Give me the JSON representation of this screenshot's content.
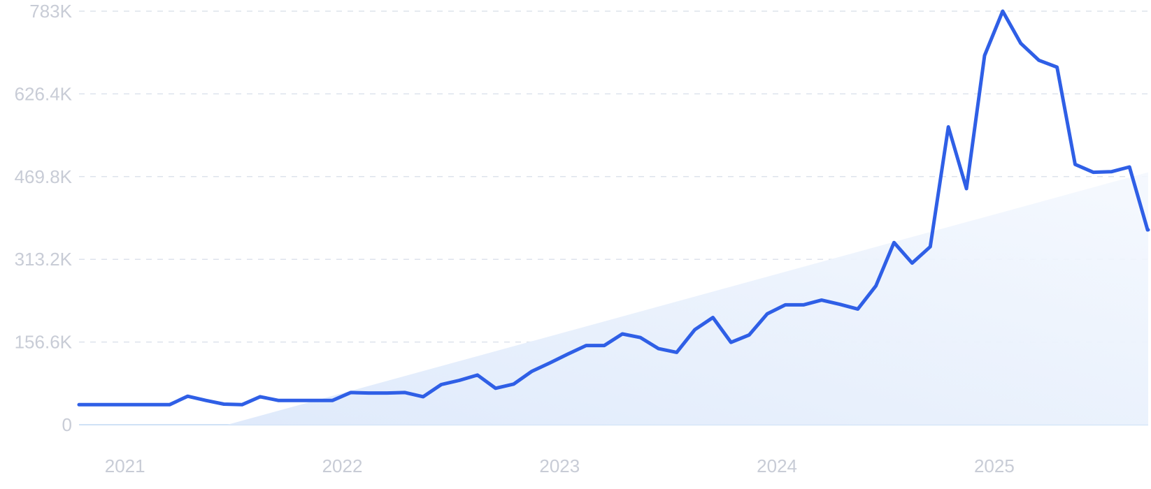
{
  "chart_data": {
    "type": "line",
    "title": "",
    "xlabel": "",
    "ylabel": "",
    "ylim": [
      0,
      783000
    ],
    "y_ticks": [
      {
        "value": 0,
        "label": "0"
      },
      {
        "value": 156600,
        "label": "156.6K"
      },
      {
        "value": 313200,
        "label": "313.2K"
      },
      {
        "value": 469800,
        "label": "469.8K"
      },
      {
        "value": 626400,
        "label": "626.4K"
      },
      {
        "value": 783000,
        "label": "783K"
      }
    ],
    "x_ticks": [
      {
        "value": "2021-04",
        "label": "2021"
      },
      {
        "value": "2022-04",
        "label": "2022"
      },
      {
        "value": "2023-04",
        "label": "2023"
      },
      {
        "value": "2024-04",
        "label": "2024"
      },
      {
        "value": "2025-04",
        "label": "2025"
      }
    ],
    "grid": true,
    "trend_area": true,
    "colors": {
      "line": "#2f5fe6",
      "trend_fill": "#e6f0fb",
      "grid": "#dde3ec",
      "tick": "#c8ccd6"
    },
    "series": [
      {
        "x": [
          "2021-01",
          "2021-02",
          "2021-03",
          "2021-04",
          "2021-05",
          "2021-06",
          "2021-07",
          "2021-08",
          "2021-09",
          "2021-10",
          "2021-11",
          "2021-12",
          "2022-01",
          "2022-02",
          "2022-03",
          "2022-04",
          "2022-05",
          "2022-06",
          "2022-07",
          "2022-08",
          "2022-09",
          "2022-10",
          "2022-11",
          "2022-12",
          "2023-01",
          "2023-02",
          "2023-03",
          "2023-04",
          "2023-05",
          "2023-06",
          "2023-07",
          "2023-08",
          "2023-09",
          "2023-10",
          "2023-11",
          "2023-12",
          "2024-01",
          "2024-02",
          "2024-03",
          "2024-04",
          "2024-05",
          "2024-06",
          "2024-07",
          "2024-08",
          "2024-09",
          "2024-10",
          "2024-11",
          "2024-12",
          "2025-01",
          "2025-02",
          "2025-03",
          "2025-04",
          "2025-05",
          "2025-06",
          "2025-07",
          "2025-08",
          "2025-09",
          "2025-10",
          "2025-11",
          "2025-12",
          "2026-01",
          "2026-02"
        ],
        "values": [
          38000,
          38000,
          38000,
          38000,
          38000,
          38000,
          54000,
          46000,
          39000,
          38000,
          53000,
          46000,
          46000,
          46000,
          46000,
          61000,
          60000,
          60000,
          61000,
          53000,
          76000,
          84000,
          94000,
          69000,
          77000,
          101000,
          117000,
          134000,
          150000,
          150000,
          172000,
          165000,
          144000,
          137000,
          180000,
          203000,
          156000,
          170000,
          210000,
          227000,
          227000,
          236000,
          228000,
          219000,
          263000,
          345000,
          306000,
          337000,
          564000,
          447000,
          699000,
          783000,
          722000,
          690000,
          677000,
          493000,
          478000,
          479000,
          488000,
          369000,
          369000,
          369000
        ]
      }
    ]
  }
}
